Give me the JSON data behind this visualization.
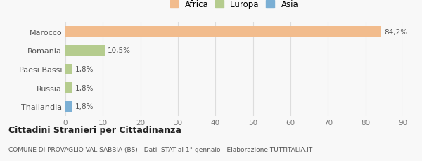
{
  "categories": [
    "Marocco",
    "Romania",
    "Paesi Bassi",
    "Russia",
    "Thailandia"
  ],
  "values": [
    84.2,
    10.5,
    1.8,
    1.8,
    1.8
  ],
  "labels": [
    "84,2%",
    "10,5%",
    "1,8%",
    "1,8%",
    "1,8%"
  ],
  "colors": [
    "#f2bc8d",
    "#b5cc8e",
    "#b5cc8e",
    "#b5cc8e",
    "#7bafd4"
  ],
  "legend_items": [
    {
      "label": "Africa",
      "color": "#f2bc8d"
    },
    {
      "label": "Europa",
      "color": "#b5cc8e"
    },
    {
      "label": "Asia",
      "color": "#7bafd4"
    }
  ],
  "xlim": [
    0,
    90
  ],
  "xticks": [
    0,
    10,
    20,
    30,
    40,
    50,
    60,
    70,
    80,
    90
  ],
  "title": "Cittadini Stranieri per Cittadinanza",
  "subtitle": "COMUNE DI PROVAGLIO VAL SABBIA (BS) - Dati ISTAT al 1° gennaio - Elaborazione TUTTITALIA.IT",
  "background_color": "#f8f8f8",
  "bar_height": 0.55,
  "grid_color": "#dddddd"
}
